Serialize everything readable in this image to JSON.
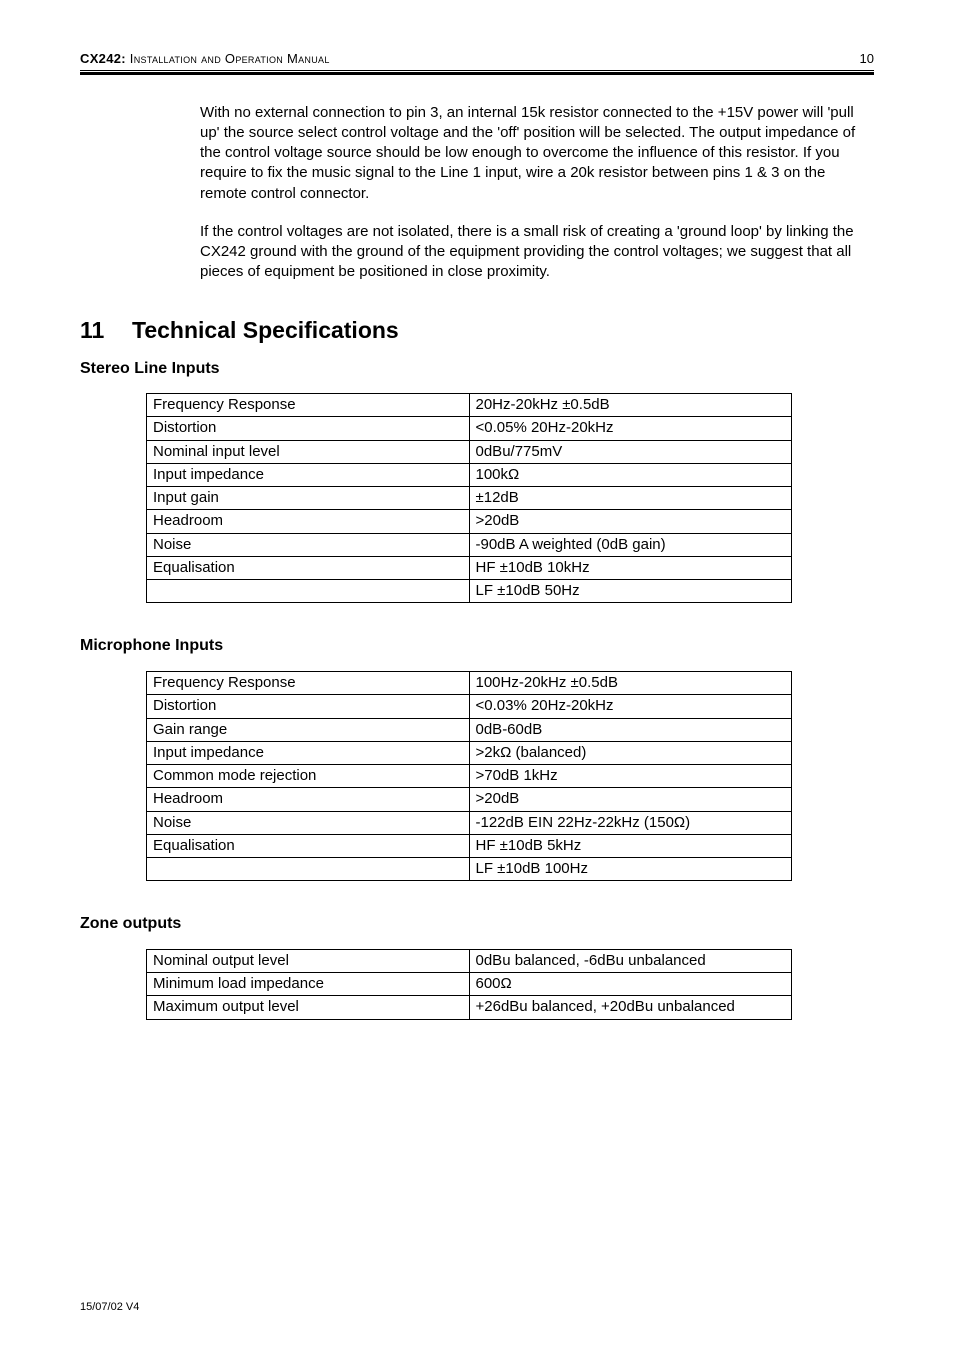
{
  "header": {
    "model": "CX242:",
    "manual_label": " Installation and Operation Manual",
    "page_no": "10"
  },
  "paragraphs": {
    "p1": "With no external connection to pin 3, an internal 15k resistor connected to the +15V power will 'pull up' the source select control voltage and the 'off' position will be selected. The output impedance of the control voltage source should be low enough to overcome the influence of this resistor. If you require to fix the music signal to the Line 1 input, wire a 20k resistor between pins 1 & 3 on the remote control connector.",
    "p2": "If the control voltages are not isolated, there is a small risk of creating a 'ground loop' by linking the CX242 ground with the ground of the equipment providing the control voltages; we suggest that all pieces of equipment be positioned in close proximity."
  },
  "section": {
    "number": "11",
    "title": "Technical Specifications"
  },
  "stereo": {
    "heading": "Stereo Line Inputs",
    "rows": [
      [
        "Frequency Response",
        "20Hz-20kHz ±0.5dB"
      ],
      [
        "Distortion",
        "<0.05% 20Hz-20kHz"
      ],
      [
        "Nominal input level",
        "0dBu/775mV"
      ],
      [
        "Input impedance",
        "100kΩ"
      ],
      [
        "Input gain",
        "±12dB"
      ],
      [
        "Headroom",
        ">20dB"
      ],
      [
        "Noise",
        "-90dB A weighted (0dB gain)"
      ],
      [
        "Equalisation",
        "HF ±10dB 10kHz"
      ],
      [
        "",
        "LF ±10dB 50Hz"
      ]
    ]
  },
  "mic": {
    "heading": "Microphone Inputs",
    "rows": [
      [
        "Frequency Response",
        "100Hz-20kHz ±0.5dB"
      ],
      [
        "Distortion",
        "<0.03% 20Hz-20kHz"
      ],
      [
        "Gain range",
        "0dB-60dB"
      ],
      [
        "Input impedance",
        ">2kΩ (balanced)"
      ],
      [
        "Common mode rejection",
        ">70dB 1kHz"
      ],
      [
        "Headroom",
        ">20dB"
      ],
      [
        "Noise",
        "-122dB EIN 22Hz-22kHz (150Ω)"
      ],
      [
        "Equalisation",
        "HF ±10dB 5kHz"
      ],
      [
        "",
        "LF ±10dB 100Hz"
      ]
    ]
  },
  "zone": {
    "heading": "Zone outputs",
    "rows": [
      [
        "Nominal output level",
        "0dBu balanced, -6dBu unbalanced"
      ],
      [
        "Minimum load impedance",
        "600Ω"
      ],
      [
        "Maximum output level",
        "+26dBu balanced, +20dBu unbalanced"
      ]
    ]
  },
  "footer": {
    "version": "15/07/02 V4"
  }
}
